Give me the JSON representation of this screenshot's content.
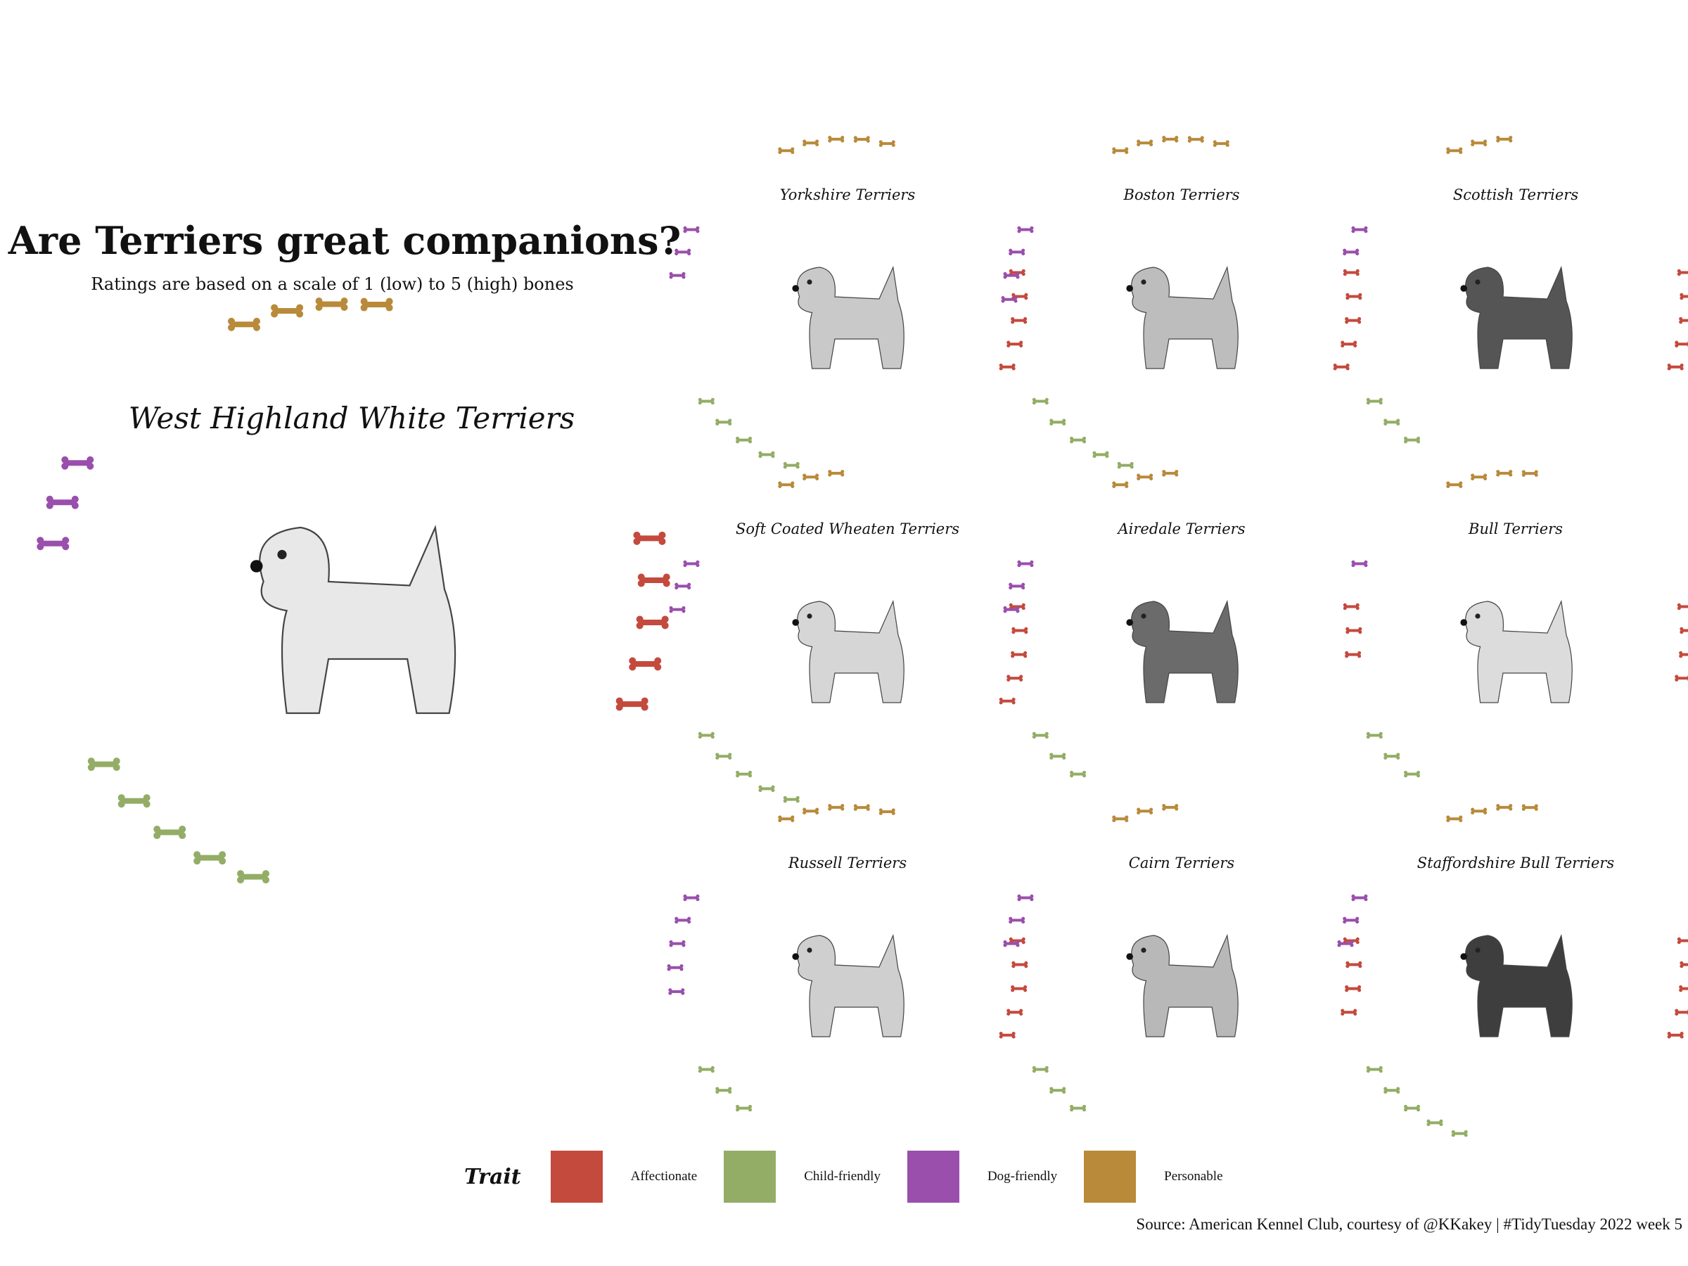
{
  "title": "Are Terriers great companions?",
  "subtitle": "Ratings are based on a scale of 1 (low) to 5 (high) bones",
  "source": "Source: American Kennel Club, courtesy of @KKakey | #TidyTuesday 2022 week 5",
  "legend": {
    "title": "Trait",
    "items": [
      {
        "label": "Affectionate",
        "color": "#c44a3d"
      },
      {
        "label": "Child-friendly",
        "color": "#93ad66"
      },
      {
        "label": "Dog-friendly",
        "color": "#9a4fac"
      },
      {
        "label": "Personable",
        "color": "#b88a3a"
      }
    ]
  },
  "chart_data": {
    "type": "radial-pictograph",
    "scale": [
      1,
      5
    ],
    "unit": "bones",
    "traits": [
      "Affectionate",
      "Child-friendly",
      "Dog-friendly",
      "Personable"
    ],
    "breeds": [
      {
        "name": "West Highland White Terriers",
        "featured": true,
        "ratings": {
          "Affectionate": 5,
          "Child-friendly": 5,
          "Dog-friendly": 3,
          "Personable": 4
        }
      },
      {
        "name": "Yorkshire Terriers",
        "ratings": {
          "Affectionate": 5,
          "Child-friendly": 5,
          "Dog-friendly": 3,
          "Personable": 5
        }
      },
      {
        "name": "Boston Terriers",
        "ratings": {
          "Affectionate": 5,
          "Child-friendly": 5,
          "Dog-friendly": 4,
          "Personable": 5
        }
      },
      {
        "name": "Scottish Terriers",
        "ratings": {
          "Affectionate": 5,
          "Child-friendly": 3,
          "Dog-friendly": 2,
          "Personable": 3
        }
      },
      {
        "name": "Soft Coated Wheaten Terriers",
        "ratings": {
          "Affectionate": 5,
          "Child-friendly": 5,
          "Dog-friendly": 3,
          "Personable": 3
        }
      },
      {
        "name": "Airedale Terriers",
        "ratings": {
          "Affectionate": 3,
          "Child-friendly": 3,
          "Dog-friendly": 3,
          "Personable": 3
        }
      },
      {
        "name": "Bull Terriers",
        "ratings": {
          "Affectionate": 4,
          "Child-friendly": 3,
          "Dog-friendly": 1,
          "Personable": 4
        }
      },
      {
        "name": "Russell Terriers",
        "ratings": {
          "Affectionate": 5,
          "Child-friendly": 3,
          "Dog-friendly": 5,
          "Personable": 5
        }
      },
      {
        "name": "Cairn Terriers",
        "ratings": {
          "Affectionate": 4,
          "Child-friendly": 3,
          "Dog-friendly": 3,
          "Personable": 3
        }
      },
      {
        "name": "Staffordshire Bull Terriers",
        "ratings": {
          "Affectionate": 5,
          "Child-friendly": 5,
          "Dog-friendly": 3,
          "Personable": 4
        }
      }
    ]
  }
}
